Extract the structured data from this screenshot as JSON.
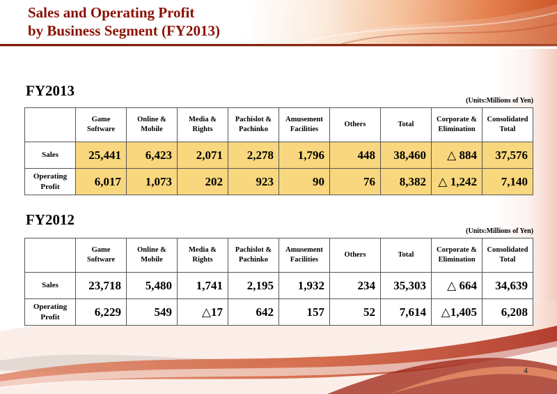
{
  "slide": {
    "title_line1": "Sales and Operating Profit",
    "title_line2": "by Business Segment (FY2013)",
    "page_number": "4"
  },
  "accent": {
    "title_color": "#8a1002",
    "highlight": "#f8d77e",
    "rule_color": "#7e1a02"
  },
  "tables": [
    {
      "year_label": "FY2013",
      "units_label": "(Units:Millions of Yen)",
      "highlighted": true,
      "columns": [
        "Game\nSoftware",
        "Online &\nMobile",
        "Media &\nRights",
        "Pachislot &\nPachinko",
        "Amusement\nFacilities",
        "Others",
        "Total",
        "Corporate &\nElimination",
        "Consolidated\nTotal"
      ],
      "rows": [
        {
          "label": "Sales",
          "values": [
            "25,441",
            "6,423",
            "2,071",
            "2,278",
            "1,796",
            "448",
            "38,460",
            "△ 884",
            "37,576"
          ]
        },
        {
          "label": "Operating Profit",
          "values": [
            "6,017",
            "1,073",
            "202",
            "923",
            "90",
            "76",
            "8,382",
            "△ 1,242",
            "7,140"
          ]
        }
      ]
    },
    {
      "year_label": "FY2012",
      "units_label": "(Units:Millions of Yen)",
      "highlighted": false,
      "columns": [
        "Game\nSoftware",
        "Online &\nMobile",
        "Media &\nRights",
        "Pachislot &\nPachinko",
        "Amusement\nFacilities",
        "Others",
        "Total",
        "Corporate &\nElimination",
        "Consolidated\nTotal"
      ],
      "rows": [
        {
          "label": "Sales",
          "values": [
            "23,718",
            "5,480",
            "1,741",
            "2,195",
            "1,932",
            "234",
            "35,303",
            "△ 664",
            "34,639"
          ]
        },
        {
          "label": "Operating Profit",
          "values": [
            "6,229",
            "549",
            "△17",
            "642",
            "157",
            "52",
            "7,614",
            "△1,405",
            "6,208"
          ]
        }
      ]
    }
  ]
}
